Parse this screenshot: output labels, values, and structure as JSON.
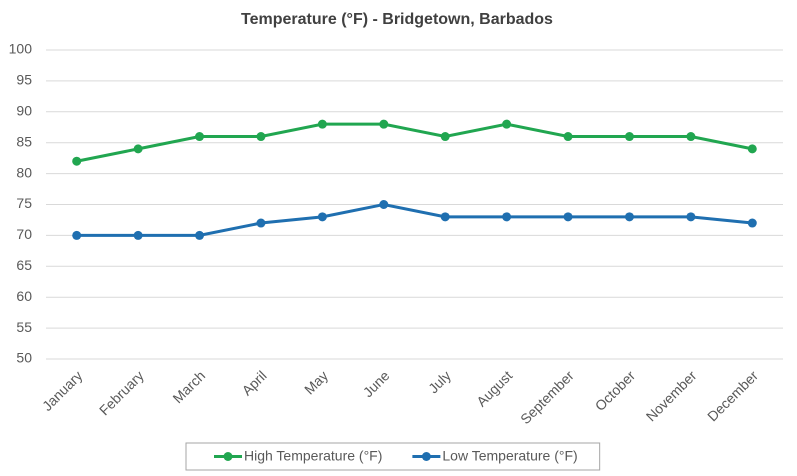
{
  "chart_data": {
    "type": "line",
    "title": "Temperature (°F) - Bridgetown, Barbados",
    "categories": [
      "January",
      "February",
      "March",
      "April",
      "May",
      "June",
      "July",
      "August",
      "September",
      "October",
      "November",
      "December"
    ],
    "series": [
      {
        "name": "High Temperature (°F)",
        "color": "#21a650",
        "values": [
          82,
          84,
          86,
          86,
          88,
          88,
          86,
          88,
          86,
          86,
          86,
          84
        ]
      },
      {
        "name": "Low Temperature (°F)",
        "color": "#1f6fb0",
        "values": [
          70,
          70,
          70,
          72,
          73,
          75,
          73,
          73,
          73,
          73,
          73,
          72
        ]
      }
    ],
    "ylim": [
      50,
      100
    ],
    "yticks": [
      50,
      55,
      60,
      65,
      70,
      75,
      80,
      85,
      90,
      95,
      100
    ],
    "grid": true,
    "legend": "bottom"
  }
}
